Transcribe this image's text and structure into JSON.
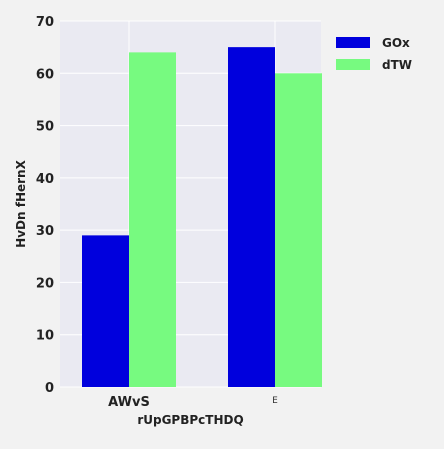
{
  "chart_data": {
    "type": "bar",
    "categories": [
      "AWvS",
      "E"
    ],
    "series": [
      {
        "name": "GOx",
        "values": [
          29,
          65
        ],
        "color": "#0000dd"
      },
      {
        "name": "dTW",
        "values": [
          64,
          60
        ],
        "color": "#77fa80"
      }
    ],
    "xlabel": "rUpGPBPcTHDQ",
    "ylabel": "HvDn fHernX",
    "ylim": [
      0,
      70
    ],
    "yticks": [
      0,
      10,
      20,
      30,
      40,
      50,
      60,
      70
    ],
    "grid": true,
    "legend": "top-right",
    "plot_background": "#eaeaf2",
    "page_background": "#f2f2f2"
  }
}
